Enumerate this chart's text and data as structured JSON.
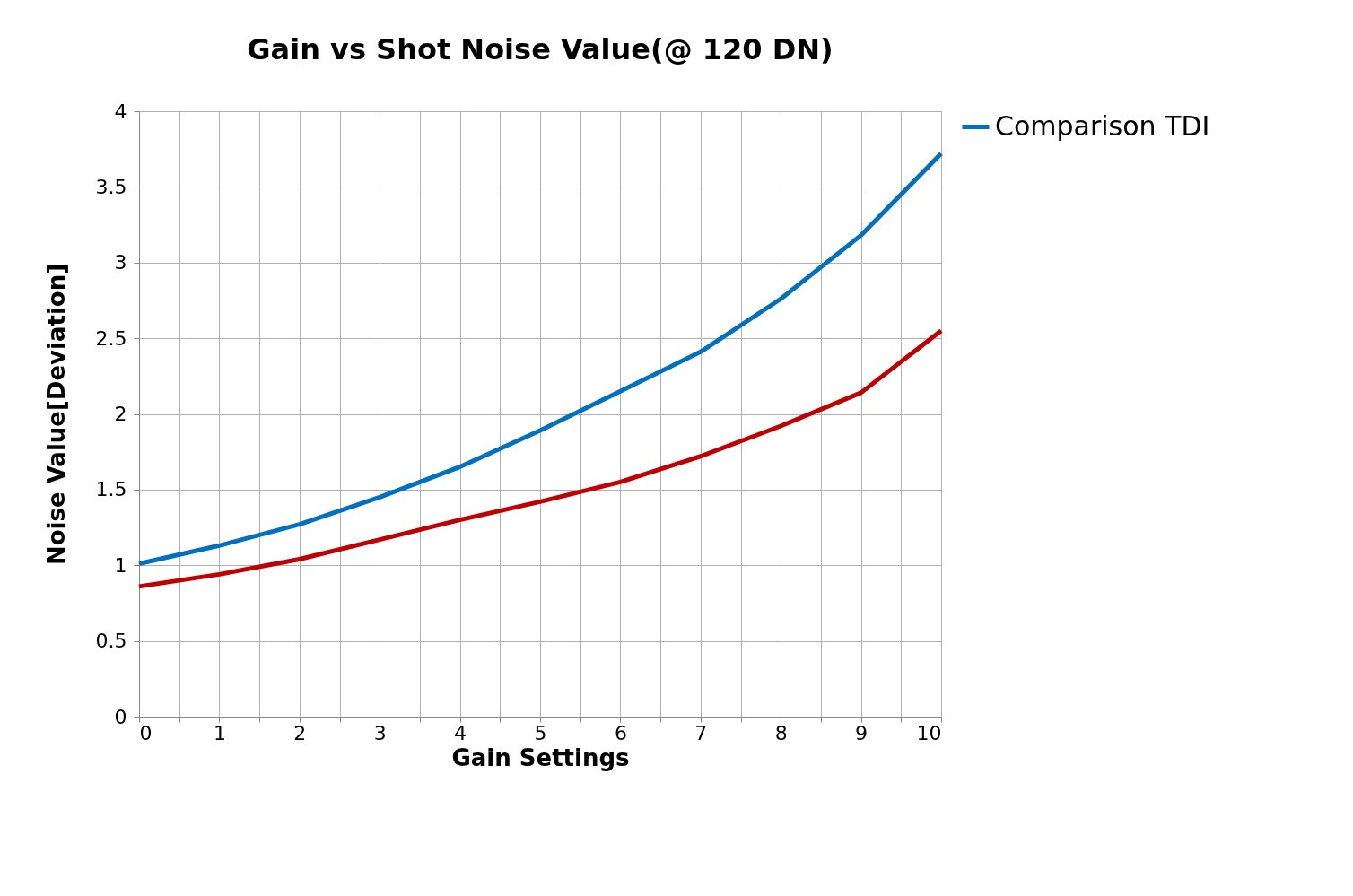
{
  "chart_data": {
    "type": "line",
    "title": "Gain vs  Shot Noise Value(@ 120 DN)",
    "xlabel": "Gain Settings",
    "ylabel": "Noise Value[Deviation]",
    "x": [
      0,
      1,
      2,
      3,
      4,
      5,
      6,
      7,
      8,
      9,
      10
    ],
    "series": [
      {
        "name": "Comparison TDI",
        "color": "#0070c0",
        "values": [
          1.01,
          1.13,
          1.27,
          1.45,
          1.65,
          1.89,
          2.15,
          2.41,
          2.76,
          3.18,
          3.72
        ]
      },
      {
        "color": "#c00000",
        "values": [
          0.86,
          0.94,
          1.04,
          1.17,
          1.3,
          1.42,
          1.55,
          1.72,
          1.92,
          2.14,
          2.55
        ]
      }
    ],
    "xlim": [
      0,
      10
    ],
    "xticks": [
      0,
      {
        "value": 0.5,
        "label": null
      },
      1,
      {
        "value": 1.5,
        "label": null
      },
      2,
      {
        "value": 2.5,
        "label": null
      },
      3,
      {
        "value": 3.5,
        "label": null
      },
      4,
      {
        "value": 4.5,
        "label": null
      },
      5,
      {
        "value": 5.5,
        "label": null
      },
      6,
      {
        "value": 6.5,
        "label": null
      },
      7,
      {
        "value": 7.5,
        "label": null
      },
      8,
      {
        "value": 8.5,
        "label": null
      },
      9,
      {
        "value": 9.5,
        "label": null
      },
      10
    ],
    "ylim": [
      0,
      4
    ],
    "yticks": [
      0,
      0.5,
      1,
      1.5,
      2,
      2.5,
      3,
      3.5,
      4
    ],
    "grid": true,
    "legend": "right",
    "marker": "none",
    "line_style": "solid"
  }
}
